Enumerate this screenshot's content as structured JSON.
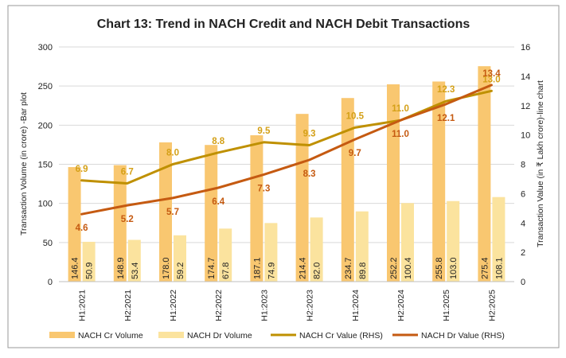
{
  "chart_data": {
    "type": "bar",
    "title": "Chart 13: Trend in NACH Credit and NACH Debit Transactions",
    "ylabel": "Transaction Volume (in crore) -Bar plot",
    "y2label": "Transaction Value (in ₹ Lakh crore)-line chart",
    "ylim": [
      0,
      300
    ],
    "yticks": [
      0,
      50,
      100,
      150,
      200,
      250,
      300
    ],
    "y2lim": [
      0,
      16
    ],
    "y2ticks": [
      0,
      2,
      4,
      6,
      8,
      10,
      12,
      14,
      16
    ],
    "categories": [
      "H1:2021",
      "H2:2021",
      "H1:2022",
      "H2:2022",
      "H1:2023",
      "H2:2023",
      "H1:2024",
      "H2:2024",
      "H1:2025",
      "H2:2025"
    ],
    "bar_series": [
      {
        "name": "NACH Cr  Volume",
        "color": "#F9C770",
        "values": [
          146.4,
          148.9,
          178.0,
          174.7,
          187.1,
          214.4,
          234.7,
          252.2,
          255.8,
          275.4
        ],
        "labels": [
          "146.4",
          "148.9",
          "178.0",
          "174.7",
          "187.1",
          "214.4",
          "234.7",
          "252.2",
          "255.8",
          "275.4"
        ]
      },
      {
        "name": "NACH Dr  Volume",
        "color": "#FBE39E",
        "values": [
          50.9,
          53.4,
          59.2,
          67.8,
          74.9,
          82.0,
          89.8,
          100.4,
          103.0,
          108.1
        ],
        "labels": [
          "50.9",
          "53.4",
          "59.2",
          "67.8",
          "74.9",
          "82.0",
          "89.8",
          "100.4",
          "103.0",
          "108.1"
        ]
      }
    ],
    "line_series": [
      {
        "name": "NACH Cr    Value (RHS)",
        "color": "#BF9000",
        "label_color": "#D4A017",
        "values": [
          6.9,
          6.7,
          8.0,
          8.8,
          9.5,
          9.3,
          10.5,
          11.0,
          12.3,
          13.0
        ],
        "labels": [
          "6.9",
          "6.7",
          "8.0",
          "8.8",
          "9.5",
          "9.3",
          "10.5",
          "11.0",
          "12.3",
          "13.0"
        ]
      },
      {
        "name": "NACH Dr    Value (RHS)",
        "color": "#C55A11",
        "label_color": "#C55A11",
        "values": [
          4.6,
          5.2,
          5.7,
          6.4,
          7.3,
          8.3,
          9.7,
          11.0,
          12.1,
          13.4
        ],
        "labels": [
          "4.6",
          "5.2",
          "5.7",
          "6.4",
          "7.3",
          "8.3",
          "9.7",
          "11.0",
          "12.1",
          "13.4"
        ]
      }
    ],
    "legend_position": "bottom",
    "grid": true
  }
}
